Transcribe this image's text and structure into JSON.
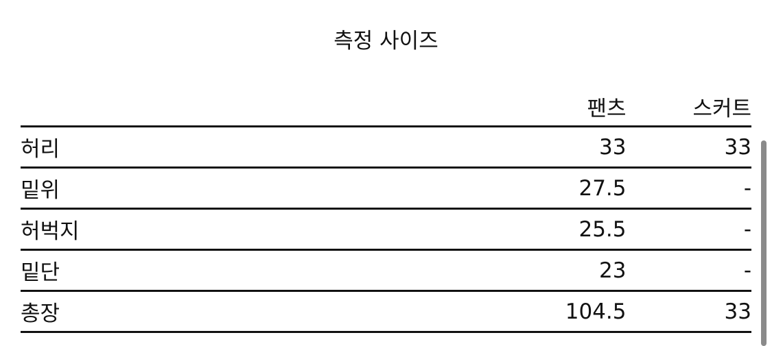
{
  "title": "측정 사이즈",
  "table": {
    "headers": [
      "",
      "팬츠",
      "스커트"
    ],
    "rows": [
      [
        "허리",
        "33",
        "33"
      ],
      [
        "밑위",
        "27.5",
        "-"
      ],
      [
        "허벅지",
        "25.5",
        "-"
      ],
      [
        "밑단",
        "23",
        "-"
      ],
      [
        "총장",
        "104.5",
        "33"
      ]
    ]
  }
}
